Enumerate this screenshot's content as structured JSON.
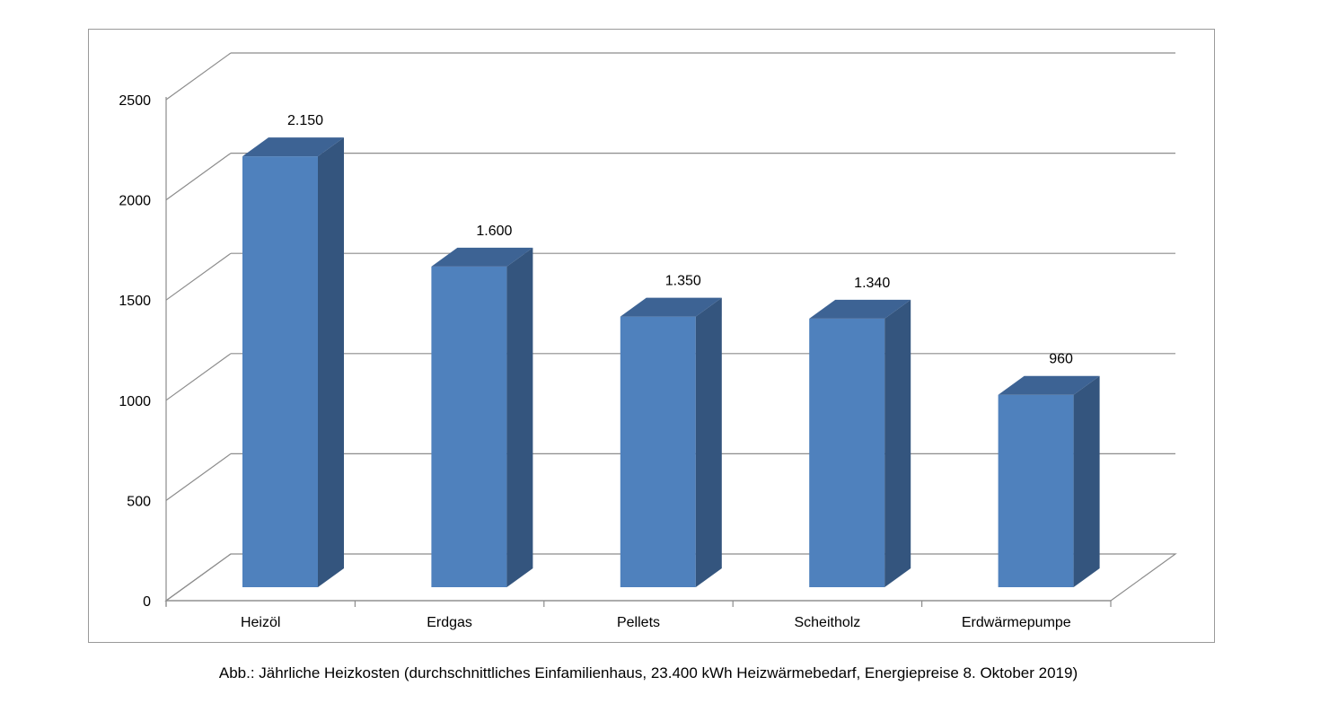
{
  "chart_data": {
    "type": "bar",
    "categories": [
      "Heizöl",
      "Erdgas",
      "Pellets",
      "Scheitholz",
      "Erdwärmepumpe"
    ],
    "values": [
      2150,
      1600,
      1350,
      1340,
      960
    ],
    "value_labels": [
      "2.150",
      "1.600",
      "1.350",
      "1.340",
      "960"
    ],
    "yticks": [
      0,
      500,
      1000,
      1500,
      2000,
      2500
    ],
    "ylim": [
      0,
      2500
    ],
    "grid": true,
    "legend": "none",
    "style": "3d-column",
    "colors": {
      "front": "#4f81bd",
      "side": "#34557e",
      "top": "#3d6394",
      "grid": "#8c8c8c"
    }
  },
  "caption": "Abb.: Jährliche Heizkosten (durchschnittliches Einfamilienhaus, 23.400 kWh Heizwärmebedarf, Energiepreise 8. Oktober 2019)"
}
